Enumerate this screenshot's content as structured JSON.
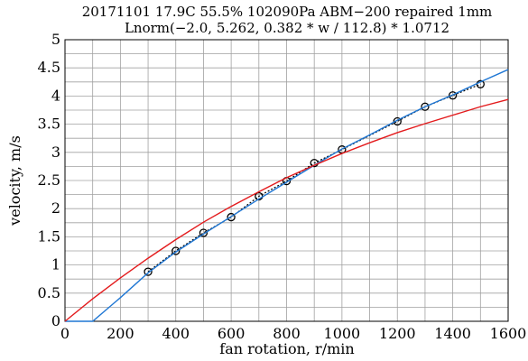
{
  "chart_data": {
    "type": "line",
    "title_line1": "20171101 17.9C 55.5% 102090Pa ABM−200 repaired 1mm",
    "title_line2": "Lnorm(−2.0, 5.262, 0.382 * w / 112.8) * 1.0712",
    "xlabel": "fan rotation, r/min",
    "ylabel": "velocity, m/s",
    "xlim": [
      0,
      1600
    ],
    "ylim": [
      0,
      5
    ],
    "xticks": [
      0,
      200,
      400,
      600,
      800,
      1000,
      1200,
      1400,
      1600
    ],
    "xtick_labels": [
      "0",
      "200",
      "400",
      "600",
      "800",
      "1000",
      "1200",
      "1400",
      "1600"
    ],
    "yticks": [
      0,
      0.5,
      1,
      1.5,
      2,
      2.5,
      3,
      3.5,
      4,
      4.5,
      5
    ],
    "ytick_labels": [
      "0",
      "0.5",
      "1",
      "1.5",
      "2",
      "2.5",
      "3",
      "3.5",
      "4",
      "4.5",
      "5"
    ],
    "x_minor_step": 100,
    "y_minor_step": 0.25,
    "grid": true,
    "series": [
      {
        "style": "markers-dotted",
        "color": "#000000",
        "x": [
          300,
          400,
          500,
          600,
          700,
          800,
          900,
          1000,
          1200,
          1300,
          1400,
          1500
        ],
        "y": [
          0.88,
          1.25,
          1.57,
          1.85,
          2.22,
          2.49,
          2.81,
          3.05,
          3.55,
          3.81,
          4.01,
          4.21
        ]
      },
      {
        "style": "line",
        "color": "#1f77d4",
        "x": [
          0,
          100,
          200,
          300,
          400,
          500,
          600,
          700,
          800,
          900,
          1000,
          1100,
          1200,
          1300,
          1400,
          1500,
          1600
        ],
        "y": [
          0,
          0,
          0.42,
          0.86,
          1.23,
          1.55,
          1.86,
          2.17,
          2.47,
          2.77,
          3.06,
          3.31,
          3.57,
          3.81,
          4.02,
          4.25,
          4.47
        ]
      },
      {
        "style": "line",
        "color": "#e31a1c",
        "x": [
          0,
          100,
          200,
          300,
          400,
          500,
          600,
          700,
          800,
          900,
          1000,
          1100,
          1200,
          1300,
          1400,
          1500,
          1600
        ],
        "y": [
          0,
          0.4,
          0.77,
          1.12,
          1.45,
          1.76,
          2.04,
          2.3,
          2.55,
          2.77,
          2.98,
          3.17,
          3.35,
          3.51,
          3.66,
          3.81,
          3.94
        ]
      }
    ]
  }
}
